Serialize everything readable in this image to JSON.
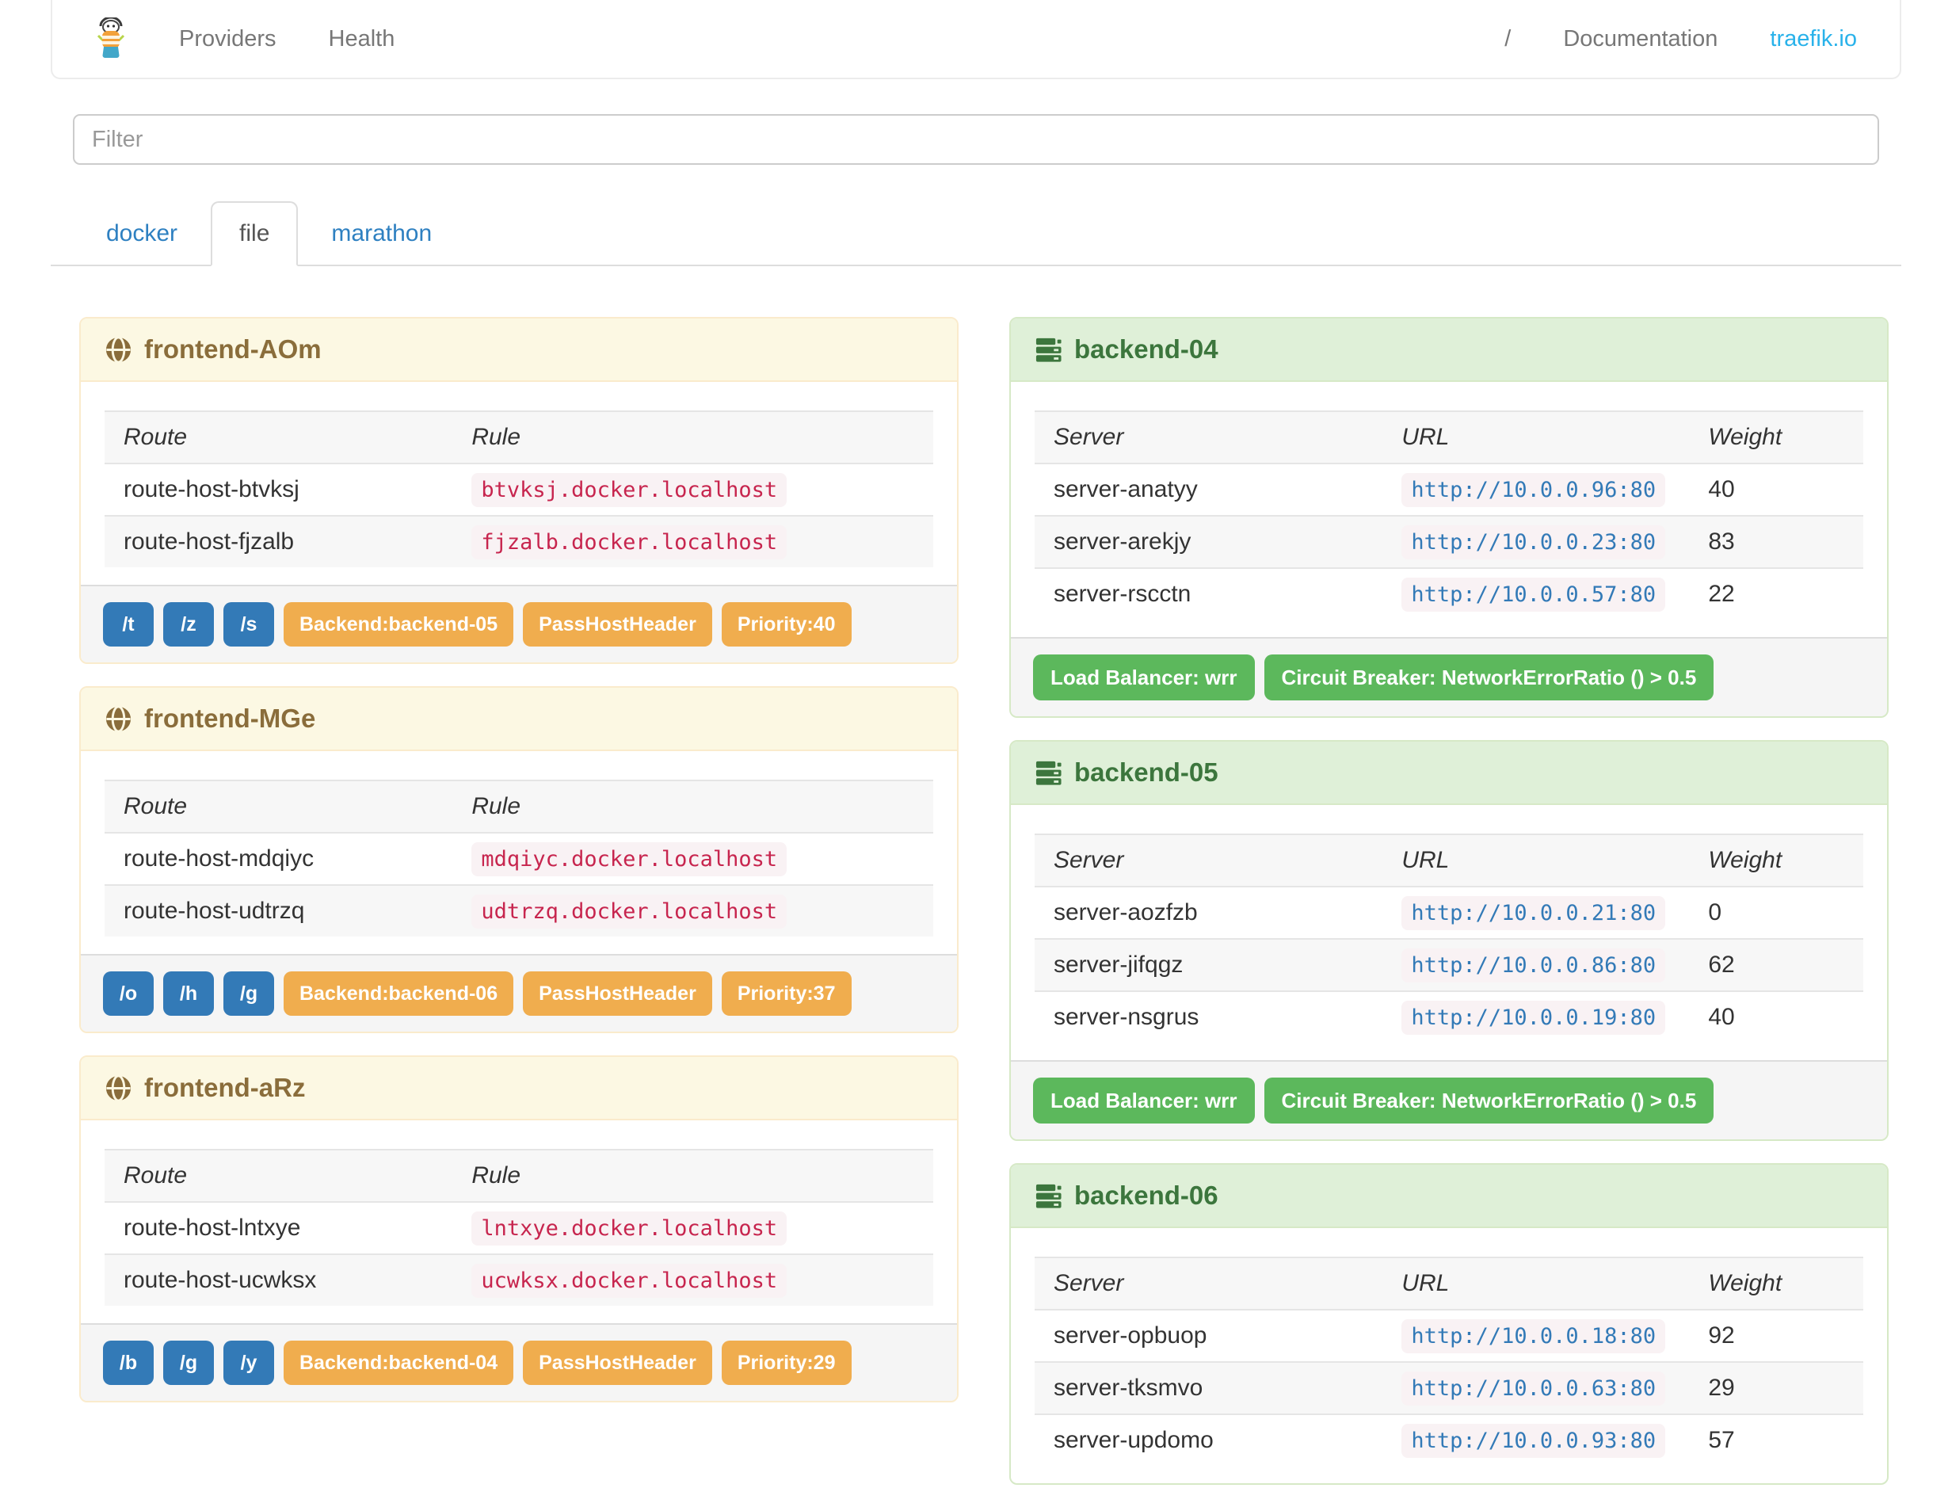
{
  "navbar": {
    "brand_icon": "traefik-logo-icon",
    "links": [
      "Providers",
      "Health"
    ],
    "separator": "/",
    "documentation": "Documentation",
    "site": "traefik.io"
  },
  "filter": {
    "placeholder": "Filter"
  },
  "tabs": [
    {
      "label": "docker",
      "active": false
    },
    {
      "label": "file",
      "active": true
    },
    {
      "label": "marathon",
      "active": false
    }
  ],
  "frontend_columns": [
    "Route",
    "Rule"
  ],
  "backend_columns": [
    "Server",
    "URL",
    "Weight"
  ],
  "frontends": [
    {
      "title": "frontend-AOm",
      "routes": [
        {
          "route": "route-host-btvksj",
          "rule": "btvksj.docker.localhost"
        },
        {
          "route": "route-host-fjzalb",
          "rule": "fjzalb.docker.localhost"
        }
      ],
      "paths": [
        "/t",
        "/z",
        "/s"
      ],
      "tags": [
        "Backend:backend-05",
        "PassHostHeader",
        "Priority:40"
      ]
    },
    {
      "title": "frontend-MGe",
      "routes": [
        {
          "route": "route-host-mdqiyc",
          "rule": "mdqiyc.docker.localhost"
        },
        {
          "route": "route-host-udtrzq",
          "rule": "udtrzq.docker.localhost"
        }
      ],
      "paths": [
        "/o",
        "/h",
        "/g"
      ],
      "tags": [
        "Backend:backend-06",
        "PassHostHeader",
        "Priority:37"
      ]
    },
    {
      "title": "frontend-aRz",
      "routes": [
        {
          "route": "route-host-lntxye",
          "rule": "lntxye.docker.localhost"
        },
        {
          "route": "route-host-ucwksx",
          "rule": "ucwksx.docker.localhost"
        }
      ],
      "paths": [
        "/b",
        "/g",
        "/y"
      ],
      "tags": [
        "Backend:backend-04",
        "PassHostHeader",
        "Priority:29"
      ]
    }
  ],
  "backends": [
    {
      "title": "backend-04",
      "servers": [
        {
          "server": "server-anatyy",
          "url": "http://10.0.0.96:80",
          "weight": "40"
        },
        {
          "server": "server-arekjy",
          "url": "http://10.0.0.23:80",
          "weight": "83"
        },
        {
          "server": "server-rscctn",
          "url": "http://10.0.0.57:80",
          "weight": "22"
        }
      ],
      "tags": [
        "Load Balancer: wrr",
        "Circuit Breaker: NetworkErrorRatio () > 0.5"
      ]
    },
    {
      "title": "backend-05",
      "servers": [
        {
          "server": "server-aozfzb",
          "url": "http://10.0.0.21:80",
          "weight": "0"
        },
        {
          "server": "server-jifqgz",
          "url": "http://10.0.0.86:80",
          "weight": "62"
        },
        {
          "server": "server-nsgrus",
          "url": "http://10.0.0.19:80",
          "weight": "40"
        }
      ],
      "tags": [
        "Load Balancer: wrr",
        "Circuit Breaker: NetworkErrorRatio () > 0.5"
      ]
    },
    {
      "title": "backend-06",
      "servers": [
        {
          "server": "server-opbuop",
          "url": "http://10.0.0.18:80",
          "weight": "92"
        },
        {
          "server": "server-tksmvo",
          "url": "http://10.0.0.63:80",
          "weight": "29"
        },
        {
          "server": "server-updomo",
          "url": "http://10.0.0.93:80",
          "weight": "57"
        }
      ],
      "tags": []
    }
  ],
  "colors": {
    "brand_link": "#29b2ea",
    "tab_link": "#2e80c1",
    "warning_title": "#8a6d3b",
    "warning_bg": "#fcf8e3",
    "warning_border": "#faebcc",
    "success_title": "#3c763d",
    "success_bg": "#dff0d8",
    "success_border": "#d6e9c6",
    "badge_primary": "#337ab7",
    "badge_warning": "#f0ad4e",
    "badge_success": "#5cb85c",
    "code_text": "#c7254e",
    "code_bg": "#f9f2f4",
    "url_text": "#337ab7"
  }
}
